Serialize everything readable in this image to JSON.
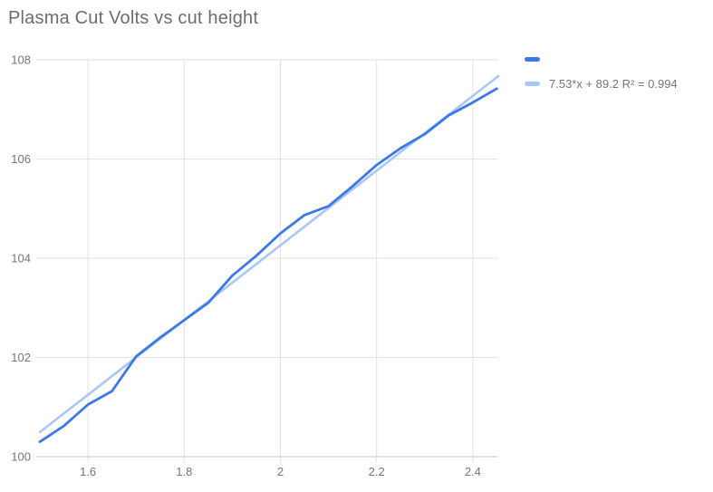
{
  "title": "Plasma Cut Volts vs cut height",
  "colors": {
    "series": "#3b78e8",
    "trendline": "#a9c6f7",
    "grid": "#e2e2e2",
    "axis_line": "#c4c4c4",
    "tick_text": "#757575",
    "title_text": "#6d6d6d",
    "background": "#ffffff"
  },
  "legend": {
    "position": "right",
    "items": [
      {
        "label": "",
        "color": "#3b78e8",
        "role": "series"
      },
      {
        "label": "7.53*x + 89.2 R² = 0.994",
        "color": "#a9c6f7",
        "role": "trendline"
      }
    ]
  },
  "chart_data": {
    "type": "line",
    "title": "Plasma Cut Volts vs cut height",
    "xlabel": "",
    "ylabel": "",
    "grid": true,
    "legend_position": "right",
    "xlim": [
      1.5,
      2.453
    ],
    "ylim": [
      100,
      108
    ],
    "x_ticks": [
      1.6,
      1.8,
      2,
      2.2,
      2.4
    ],
    "x_tick_labels": [
      "1.6",
      "1.8",
      "2",
      "2.2",
      "2.4"
    ],
    "y_ticks": [
      100,
      102,
      104,
      106,
      108
    ],
    "y_tick_labels": [
      "100",
      "102",
      "104",
      "106",
      "108"
    ],
    "x": [
      1.5,
      1.55,
      1.6,
      1.65,
      1.7,
      1.75,
      1.8,
      1.85,
      1.9,
      1.95,
      2.0,
      2.05,
      2.1,
      2.15,
      2.2,
      2.25,
      2.3,
      2.35,
      2.4,
      2.45
    ],
    "series": [
      {
        "name": "",
        "values": [
          100.3,
          100.62,
          101.05,
          101.32,
          102.02,
          102.4,
          102.75,
          103.1,
          103.65,
          104.05,
          104.5,
          104.87,
          105.05,
          105.45,
          105.88,
          106.22,
          106.5,
          106.88,
          107.14,
          107.42
        ]
      },
      {
        "name": "7.53*x + 89.2 R² = 0.994",
        "kind": "trendline",
        "slope": 7.53,
        "intercept": 89.2,
        "r2": 0.994
      }
    ]
  }
}
